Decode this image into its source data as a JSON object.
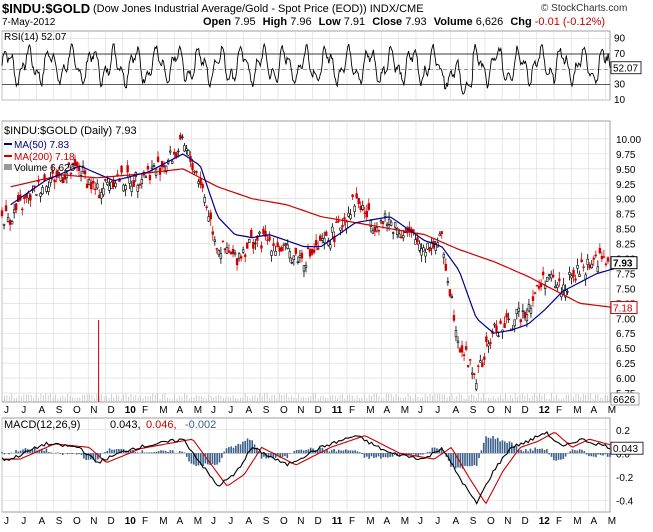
{
  "header": {
    "symbol": "$INDU:$GOLD",
    "description": "(Dow Jones Industrial Average/Gold - Spot Price (EOD))",
    "exchange": "INDX/CME",
    "date": "7-May-2012",
    "open_label": "Open",
    "open": "7.95",
    "high_label": "High",
    "high": "7.96",
    "low_label": "Low",
    "low": "7.91",
    "close_label": "Close",
    "close": "7.93",
    "volume_label": "Volume",
    "volume": "6,626",
    "chg_label": "Chg",
    "chg": "-0.01 (-0.12%)",
    "chg_color": "#cc0000"
  },
  "branding": {
    "text": "© StockCharts.com"
  },
  "colors": {
    "price_up": "#000000",
    "price_down": "#cc0000",
    "ma50": "#000088",
    "ma200": "#cc0000",
    "macd_line": "#000000",
    "signal_line": "#cc0000",
    "histogram": "#3a5f8c",
    "volume": "#cc0000",
    "grid": "#d8d8d8"
  },
  "chart_data": [
    {
      "type": "line",
      "title": "RSI(14) 52.07",
      "indicator": "RSI",
      "period": 14,
      "last_value": "52.07",
      "ylim": [
        10,
        100
      ],
      "y_ticks": [
        "90",
        "70",
        "50",
        "30",
        "10"
      ],
      "reference_lines": [
        70,
        30
      ],
      "series": [
        {
          "name": "RSI(14)",
          "last": 52.07
        }
      ],
      "note_values": "RSI oscillates between ~30 and ~80 throughout; brief dip near 20 in Aug 2011"
    },
    {
      "type": "candlestick",
      "title": "$INDU:$GOLD (Daily) 7.93",
      "grid": true,
      "x_ticks": [
        "J",
        "J",
        "A",
        "S",
        "O",
        "N",
        "D",
        "10",
        "F",
        "M",
        "A",
        "M",
        "J",
        "J",
        "A",
        "S",
        "O",
        "N",
        "D",
        "11",
        "F",
        "M",
        "A",
        "M",
        "J",
        "J",
        "A",
        "S",
        "O",
        "N",
        "D",
        "12",
        "F",
        "M",
        "A",
        "M"
      ],
      "year_ticks": [
        "10",
        "11",
        "12"
      ],
      "y_ticks": [
        "10.00",
        "9.75",
        "9.50",
        "9.25",
        "9.00",
        "8.75",
        "8.50",
        "8.25",
        "8.00",
        "7.75",
        "7.50",
        "7.25",
        "7.00",
        "6.75",
        "6.50",
        "6.25",
        "6.00",
        "5.75"
      ],
      "ylim": [
        5.6,
        10.3
      ],
      "price_points": [
        {
          "x": "Jun 2009",
          "y": 8.7
        },
        {
          "x": "Aug 2009",
          "y": 9.3
        },
        {
          "x": "Oct 2009",
          "y": 9.5
        },
        {
          "x": "Nov 2009",
          "y": 9.1
        },
        {
          "x": "Dec 2009",
          "y": 9.35
        },
        {
          "x": "Jan 2010",
          "y": 9.3
        },
        {
          "x": "Mar 2010",
          "y": 9.6
        },
        {
          "x": "Apr 2010",
          "y": 9.9
        },
        {
          "x": "May 2010",
          "y": 9.3
        },
        {
          "x": "Jun 2010",
          "y": 8.2
        },
        {
          "x": "Jul 2010",
          "y": 8.0
        },
        {
          "x": "Aug 2010",
          "y": 8.3
        },
        {
          "x": "Sep 2010",
          "y": 8.3
        },
        {
          "x": "Oct 2010",
          "y": 8.1
        },
        {
          "x": "Nov 2010",
          "y": 8.0
        },
        {
          "x": "Dec 2010",
          "y": 8.2
        },
        {
          "x": "Jan 2011",
          "y": 8.5
        },
        {
          "x": "Feb 2011",
          "y": 9.0
        },
        {
          "x": "Mar 2011",
          "y": 8.6
        },
        {
          "x": "Apr 2011",
          "y": 8.6
        },
        {
          "x": "May 2011",
          "y": 8.4
        },
        {
          "x": "Jun 2011",
          "y": 8.2
        },
        {
          "x": "Jul 2011",
          "y": 8.3
        },
        {
          "x": "Aug 2011",
          "y": 6.6
        },
        {
          "x": "Sep 2011",
          "y": 6.0
        },
        {
          "x": "Oct 2011",
          "y": 6.8
        },
        {
          "x": "Nov 2011",
          "y": 6.9
        },
        {
          "x": "Dec 2011",
          "y": 7.2
        },
        {
          "x": "Jan 2012",
          "y": 7.7
        },
        {
          "x": "Feb 2012",
          "y": 7.5
        },
        {
          "x": "Mar 2012",
          "y": 7.8
        },
        {
          "x": "Apr 2012",
          "y": 8.0
        },
        {
          "x": "May 2012",
          "y": 7.93
        }
      ],
      "series": [
        {
          "name": "MA(50)",
          "last": "7.83",
          "label": "MA(50) 7.83"
        },
        {
          "name": "MA(200)",
          "last": "7.18",
          "label": "MA(200) 7.18"
        },
        {
          "name": "Volume",
          "last": "6,626",
          "label": "Volume 6,626"
        }
      ],
      "ma50_points": [
        {
          "x": "Jun 2009",
          "y": 8.9
        },
        {
          "x": "Aug 2009",
          "y": 9.3
        },
        {
          "x": "Oct 2009",
          "y": 9.55
        },
        {
          "x": "Dec 2009",
          "y": 9.3
        },
        {
          "x": "Feb 2010",
          "y": 9.45
        },
        {
          "x": "Apr 2010",
          "y": 9.75
        },
        {
          "x": "May 2010",
          "y": 9.55
        },
        {
          "x": "Jun 2010",
          "y": 8.7
        },
        {
          "x": "Jul 2010",
          "y": 8.4
        },
        {
          "x": "Aug 2010",
          "y": 8.35
        },
        {
          "x": "Sep 2010",
          "y": 8.4
        },
        {
          "x": "Nov 2010",
          "y": 8.2
        },
        {
          "x": "Dec 2010",
          "y": 8.2
        },
        {
          "x": "Feb 2011",
          "y": 8.6
        },
        {
          "x": "Apr 2011",
          "y": 8.7
        },
        {
          "x": "Jun 2011",
          "y": 8.3
        },
        {
          "x": "Jul 2011",
          "y": 8.2
        },
        {
          "x": "Aug 2011",
          "y": 7.8
        },
        {
          "x": "Sep 2011",
          "y": 7.0
        },
        {
          "x": "Oct 2011",
          "y": 6.75
        },
        {
          "x": "Nov 2011",
          "y": 6.8
        },
        {
          "x": "Dec 2011",
          "y": 6.9
        },
        {
          "x": "Jan 2012",
          "y": 7.15
        },
        {
          "x": "Feb 2012",
          "y": 7.45
        },
        {
          "x": "Mar 2012",
          "y": 7.6
        },
        {
          "x": "Apr 2012",
          "y": 7.75
        },
        {
          "x": "May 2012",
          "y": 7.83
        }
      ],
      "ma200_points": [
        {
          "x": "Jun 2009",
          "y": 9.2
        },
        {
          "x": "Sep 2009",
          "y": 9.4
        },
        {
          "x": "Nov 2009",
          "y": 9.35
        },
        {
          "x": "Jan 2010",
          "y": 9.4
        },
        {
          "x": "Apr 2010",
          "y": 9.5
        },
        {
          "x": "Jun 2010",
          "y": 9.2
        },
        {
          "x": "Aug 2010",
          "y": 9.0
        },
        {
          "x": "Oct 2010",
          "y": 8.9
        },
        {
          "x": "Dec 2010",
          "y": 8.7
        },
        {
          "x": "Feb 2011",
          "y": 8.6
        },
        {
          "x": "Apr 2011",
          "y": 8.5
        },
        {
          "x": "Jun 2011",
          "y": 8.4
        },
        {
          "x": "Aug 2011",
          "y": 8.15
        },
        {
          "x": "Oct 2011",
          "y": 7.95
        },
        {
          "x": "Dec 2011",
          "y": 7.7
        },
        {
          "x": "Feb 2012",
          "y": 7.4
        },
        {
          "x": "Mar 2012",
          "y": 7.25
        },
        {
          "x": "May 2012",
          "y": 7.18
        }
      ],
      "right_labels": [
        "7.93",
        "7.18",
        "6626"
      ]
    },
    {
      "type": "line",
      "title": "MACD(12,26,9)",
      "legend_values": [
        "0.043",
        "0.046",
        "-0.002"
      ],
      "ylim": [
        -0.5,
        0.3
      ],
      "y_ticks": [
        "0.2",
        "0.0",
        "-0.2",
        "-0.4"
      ],
      "series": [
        {
          "name": "MACD",
          "last": 0.043
        },
        {
          "name": "Signal",
          "last": 0.046
        },
        {
          "name": "Histogram",
          "last": -0.002
        }
      ],
      "macd_points": [
        {
          "x": "Jun 2009",
          "y": -0.05
        },
        {
          "x": "Aug 2009",
          "y": 0.08
        },
        {
          "x": "Oct 2009",
          "y": 0.05
        },
        {
          "x": "Nov 2009",
          "y": -0.08
        },
        {
          "x": "Jan 2010",
          "y": 0.04
        },
        {
          "x": "Apr 2010",
          "y": 0.12
        },
        {
          "x": "Jun 2010",
          "y": -0.28
        },
        {
          "x": "Jul 2010",
          "y": -0.18
        },
        {
          "x": "Aug 2010",
          "y": 0.05
        },
        {
          "x": "Oct 2010",
          "y": -0.1
        },
        {
          "x": "Dec 2010",
          "y": 0.05
        },
        {
          "x": "Feb 2011",
          "y": 0.15
        },
        {
          "x": "Apr 2011",
          "y": 0.0
        },
        {
          "x": "Jun 2011",
          "y": -0.05
        },
        {
          "x": "Jul 2011",
          "y": 0.05
        },
        {
          "x": "Aug 2011",
          "y": -0.2
        },
        {
          "x": "Sep 2011",
          "y": -0.43
        },
        {
          "x": "Oct 2011",
          "y": -0.15
        },
        {
          "x": "Nov 2011",
          "y": 0.05
        },
        {
          "x": "Dec 2011",
          "y": 0.1
        },
        {
          "x": "Jan 2012",
          "y": 0.18
        },
        {
          "x": "Feb 2012",
          "y": 0.05
        },
        {
          "x": "Mar 2012",
          "y": 0.12
        },
        {
          "x": "Apr 2012",
          "y": 0.08
        },
        {
          "x": "May 2012",
          "y": 0.043
        }
      ]
    }
  ]
}
